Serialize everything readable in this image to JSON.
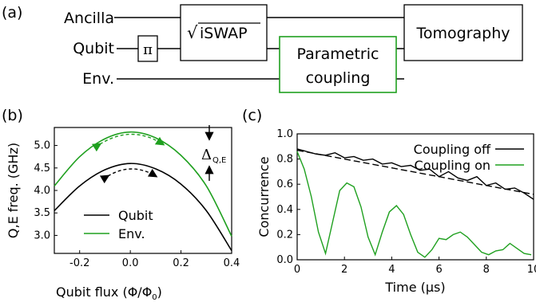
{
  "panel_a": {
    "letter": "(a)",
    "wires": {
      "ancilla": "Ancilla",
      "qubit": "Qubit",
      "env": "Env."
    },
    "gates": {
      "pi": "π",
      "iswap_prefix": "√",
      "iswap": "iSWAP",
      "parametric_line1": "Parametric",
      "parametric_line2": "coupling",
      "tomography": "Tomography"
    },
    "colors": {
      "parametric_box": "#1fa01f"
    }
  },
  "panel_b": {
    "letter": "(b)",
    "delta_symbol": "Δ",
    "delta_subscript": "Q,E",
    "legend_qubit": "Qubit",
    "legend_env": "Env.",
    "ylabel": "Q,E freq. (GHz)",
    "xlabel_text": "Qubit flux (Φ/Φ",
    "xlabel_sub": "0",
    "xlabel_close": ")",
    "colors": {
      "qubit": "#000000",
      "env": "#1fa01f"
    }
  },
  "panel_c": {
    "letter": "(c)",
    "legend_off": "Coupling off",
    "legend_on": "Coupling on",
    "ylabel": "Concurrence",
    "xlabel": "Time (μs)",
    "colors": {
      "off": "#000000",
      "on": "#1fa01f",
      "fit": "#000000"
    }
  },
  "chart_data": [
    {
      "type": "line",
      "panel": "b",
      "xlabel": "Qubit flux (Φ/Φ0)",
      "ylabel": "Q,E freq. (GHz)",
      "xlim": [
        -0.3,
        0.4
      ],
      "ylim": [
        2.6,
        5.4
      ],
      "xticks": [
        -0.2,
        0.0,
        0.2,
        0.4
      ],
      "xtick_labels": [
        "-0.2",
        "0.0",
        "0.2",
        "0.4"
      ],
      "yticks": [
        3.0,
        3.5,
        4.0,
        4.5,
        5.0
      ],
      "ytick_labels": [
        "3.0",
        "3.5",
        "4.0",
        "4.5",
        "5.0"
      ],
      "legend": "lower-center",
      "series": [
        {
          "name": "Qubit",
          "x": [
            -0.3,
            -0.2,
            -0.1,
            0.0,
            0.1,
            0.2,
            0.3,
            0.4
          ],
          "y": [
            3.55,
            4.1,
            4.46,
            4.6,
            4.48,
            4.14,
            3.55,
            2.66
          ]
        },
        {
          "name": "Env.",
          "x": [
            -0.3,
            -0.2,
            -0.1,
            0.0,
            0.1,
            0.2,
            0.3,
            0.4
          ],
          "y": [
            4.1,
            4.75,
            5.15,
            5.3,
            5.17,
            4.78,
            4.1,
            2.98
          ]
        }
      ]
    },
    {
      "type": "line",
      "panel": "c",
      "xlabel": "Time (μs)",
      "ylabel": "Concurrence",
      "xlim": [
        0,
        10
      ],
      "ylim": [
        0.0,
        1.0
      ],
      "xticks": [
        0,
        2,
        4,
        6,
        8,
        10
      ],
      "xtick_labels": [
        "0",
        "2",
        "4",
        "6",
        "8",
        "10"
      ],
      "yticks": [
        0.0,
        0.2,
        0.4,
        0.6,
        0.8,
        1.0
      ],
      "ytick_labels": [
        "0.0",
        "0.2",
        "0.4",
        "0.6",
        "0.8",
        "1.0"
      ],
      "legend": "top-right",
      "fit_line": {
        "x": [
          0,
          10
        ],
        "y": [
          0.87,
          0.52
        ]
      },
      "series": [
        {
          "name": "Coupling off",
          "x": [
            0,
            0.4,
            0.8,
            1.2,
            1.6,
            2.0,
            2.4,
            2.8,
            3.2,
            3.6,
            4.0,
            4.4,
            4.8,
            5.2,
            5.6,
            6.0,
            6.4,
            6.8,
            7.2,
            7.6,
            8.0,
            8.4,
            8.8,
            9.2,
            9.6,
            10.0
          ],
          "y": [
            0.88,
            0.86,
            0.84,
            0.83,
            0.85,
            0.81,
            0.82,
            0.79,
            0.8,
            0.76,
            0.77,
            0.74,
            0.75,
            0.71,
            0.72,
            0.66,
            0.7,
            0.65,
            0.63,
            0.66,
            0.59,
            0.61,
            0.56,
            0.57,
            0.53,
            0.48
          ]
        },
        {
          "name": "Coupling on",
          "x": [
            0,
            0.3,
            0.6,
            0.9,
            1.2,
            1.5,
            1.8,
            2.1,
            2.4,
            2.7,
            3.0,
            3.3,
            3.6,
            3.9,
            4.2,
            4.5,
            4.8,
            5.1,
            5.4,
            5.7,
            6.0,
            6.3,
            6.6,
            6.9,
            7.2,
            7.5,
            7.8,
            8.1,
            8.4,
            8.7,
            9.0,
            9.3,
            9.6,
            9.9
          ],
          "y": [
            0.86,
            0.72,
            0.5,
            0.22,
            0.05,
            0.3,
            0.55,
            0.61,
            0.58,
            0.42,
            0.18,
            0.04,
            0.22,
            0.38,
            0.43,
            0.36,
            0.2,
            0.06,
            0.02,
            0.08,
            0.17,
            0.16,
            0.2,
            0.22,
            0.18,
            0.12,
            0.06,
            0.04,
            0.07,
            0.08,
            0.13,
            0.09,
            0.05,
            0.04
          ]
        }
      ]
    }
  ]
}
